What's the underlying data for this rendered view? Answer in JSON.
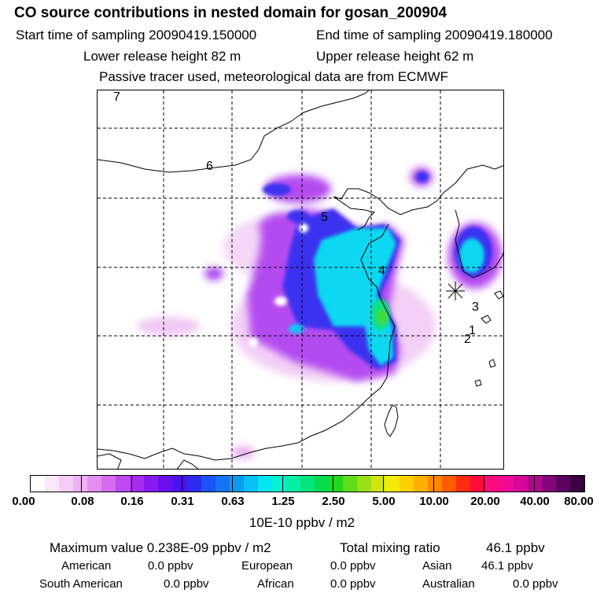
{
  "header": {
    "title": "CO  source contributions in nested domain for gosan_200904",
    "start_label": "Start time of sampling 20090419.150000",
    "end_label": "End time of sampling 20090419.180000",
    "lower_label": "Lower release height   82 m",
    "upper_label": "Upper release height   62 m",
    "tracer_note": "Passive tracer used, meteorological data are from ECMWF"
  },
  "chart_data": {
    "type": "heatmap",
    "title": "CO  source contributions in nested domain for gosan_200904",
    "colorbar_ticks": [
      "0.00",
      "0.08",
      "0.16",
      "0.31",
      "0.63",
      "1.25",
      "2.50",
      "5.00",
      "10.00",
      "20.00",
      "40.00",
      "80.00"
    ],
    "colorbar_units": "10E-10 ppbv / m2",
    "colorbar_colors": [
      "#ffffff",
      "#fbe6fb",
      "#f5ccf5",
      "#efb2f1",
      "#e48ff0",
      "#d46cf0",
      "#c04af0",
      "#a82cf0",
      "#8a18f0",
      "#6a0ef0",
      "#4a12f0",
      "#2c2cf0",
      "#1c54f5",
      "#1476f5",
      "#0c9af5",
      "#08c0f5",
      "#04e6f0",
      "#04f0d0",
      "#04eea8",
      "#04e47c",
      "#04dc4c",
      "#20d820",
      "#62dc18",
      "#9ae014",
      "#d0e410",
      "#f4ea0c",
      "#ffd000",
      "#ffb000",
      "#ff8800",
      "#ff5c00",
      "#ff2c10",
      "#ff0a3c",
      "#ff0a80",
      "#f00a96",
      "#d6089a",
      "#b0068c",
      "#86047c",
      "#5c0260",
      "#3a0042"
    ],
    "trajectory_markers": [
      "1",
      "2",
      "3",
      "4",
      "5",
      "6",
      "7"
    ],
    "receptor": "gosan",
    "grid": true
  },
  "stats": {
    "max_label": "Maximum value  0.238E-09 ppbv / m2",
    "total_label": "Total mixing ratio",
    "total_value": "46.1 ppbv",
    "regions": [
      {
        "name": "American",
        "value": "0.0 ppbv"
      },
      {
        "name": "European",
        "value": "0.0 ppbv"
      },
      {
        "name": "Asian",
        "value": "46.1 ppbv"
      },
      {
        "name": "South American",
        "value": "0.0 ppbv"
      },
      {
        "name": "African",
        "value": "0.0 ppbv"
      },
      {
        "name": "Australian",
        "value": "0.0 ppbv"
      }
    ]
  }
}
